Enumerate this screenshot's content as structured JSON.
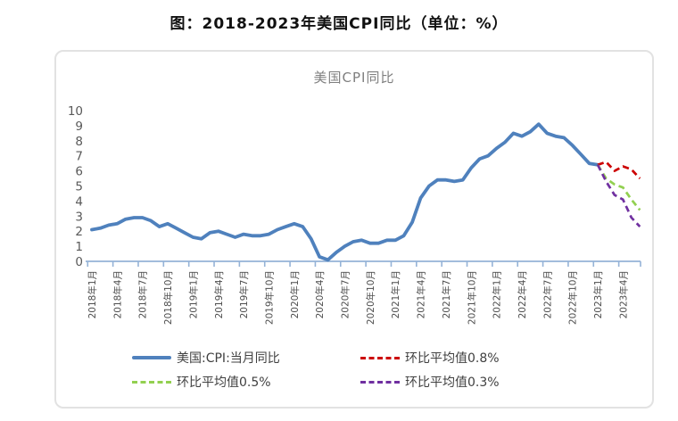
{
  "page": {
    "title": "图：2018-2023年美国CPI同比（单位：%）"
  },
  "colors": {
    "actual_line": "#4F81BD",
    "proj_08": "#CC0000",
    "proj_05": "#92D050",
    "proj_03": "#7030A0",
    "axis": "#95B3D7",
    "axis_text": "#595959",
    "chart_title_text": "#7f7f7f"
  },
  "chart_data": {
    "type": "line",
    "title": "美国CPI同比",
    "xlabel": "",
    "ylabel": "",
    "ylim": [
      0,
      10
    ],
    "y_ticks": [
      0,
      1,
      2,
      3,
      4,
      5,
      6,
      7,
      8,
      9,
      10
    ],
    "grid": "off",
    "legend_position": "bottom",
    "months_total": 66,
    "x_start": "2018-01",
    "x_tick_every_months": 3,
    "x_tick_labels": [
      "2018年1月",
      "2018年4月",
      "2018年7月",
      "2018年10月",
      "2019年1月",
      "2019年4月",
      "2019年7月",
      "2019年10月",
      "2020年1月",
      "2020年4月",
      "2020年7月",
      "2020年10月",
      "2021年1月",
      "2021年4月",
      "2021年7月",
      "2021年10月",
      "2022年1月",
      "2022年4月",
      "2022年7月",
      "2022年10月",
      "2023年1月",
      "2023年4月"
    ],
    "series": [
      {
        "name": "美国:CPI:当月同比",
        "color": "#4F81BD",
        "style": "solid",
        "start_index": 0,
        "values": [
          2.1,
          2.2,
          2.4,
          2.5,
          2.8,
          2.9,
          2.9,
          2.7,
          2.3,
          2.5,
          2.2,
          1.9,
          1.6,
          1.5,
          1.9,
          2.0,
          1.8,
          1.6,
          1.8,
          1.7,
          1.7,
          1.8,
          2.1,
          2.3,
          2.5,
          2.3,
          1.5,
          0.3,
          0.1,
          0.6,
          1.0,
          1.3,
          1.4,
          1.2,
          1.2,
          1.4,
          1.4,
          1.7,
          2.6,
          4.2,
          5.0,
          5.4,
          5.4,
          5.3,
          5.4,
          6.2,
          6.8,
          7.0,
          7.5,
          7.9,
          8.5,
          8.3,
          8.6,
          9.1,
          8.5,
          8.3,
          8.2,
          7.7,
          7.1,
          6.5,
          6.4
        ]
      },
      {
        "name": "环比平均值0.8%",
        "color": "#CC0000",
        "style": "dashed",
        "start_index": 60,
        "values": [
          6.4,
          6.6,
          6.0,
          6.3,
          6.1,
          5.5
        ]
      },
      {
        "name": "环比平均值0.5%",
        "color": "#92D050",
        "style": "dashed",
        "start_index": 60,
        "values": [
          6.4,
          5.5,
          5.1,
          4.9,
          4.1,
          3.4
        ]
      },
      {
        "name": "环比平均值0.3%",
        "color": "#7030A0",
        "style": "dashed",
        "start_index": 60,
        "values": [
          6.4,
          5.3,
          4.4,
          4.1,
          2.9,
          2.3
        ]
      }
    ]
  }
}
